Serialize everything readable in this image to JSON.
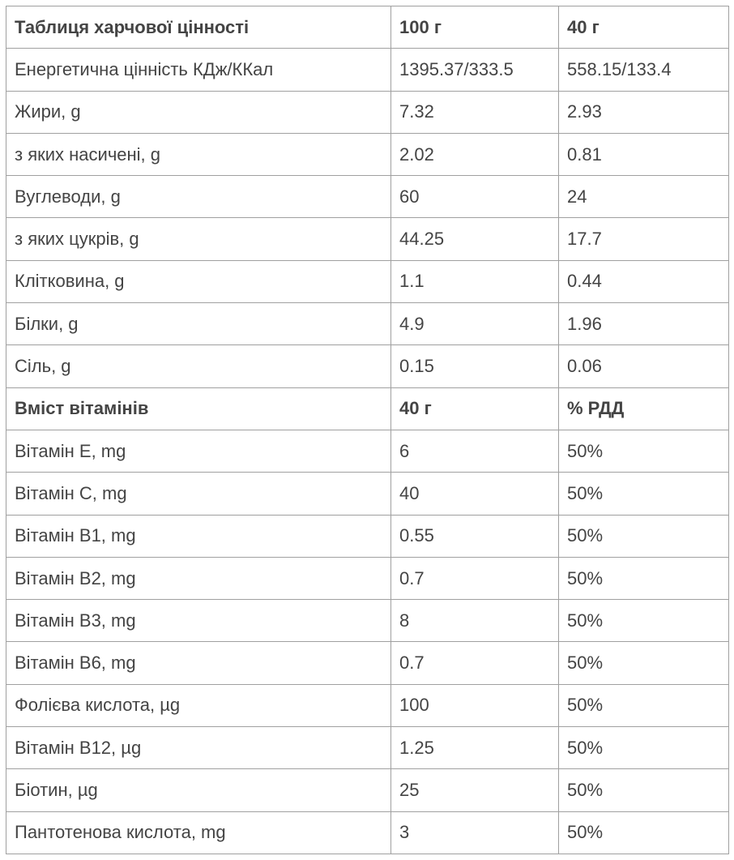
{
  "sections": [
    {
      "header": [
        "Таблиця харчової цінності",
        "100 г",
        "40 г"
      ],
      "rows": [
        [
          "Енергетична цінність КДж/ККал",
          "1395.37/333.5",
          "558.15/133.4"
        ],
        [
          "Жири, g",
          "7.32",
          "2.93"
        ],
        [
          "з яких насичені, g",
          "2.02",
          "0.81"
        ],
        [
          "Вуглеводи, g",
          "60",
          "24"
        ],
        [
          "з яких цукрів, g",
          "44.25",
          "17.7"
        ],
        [
          "Клітковина, g",
          "1.1",
          "0.44"
        ],
        [
          "Білки, g",
          "4.9",
          "1.96"
        ],
        [
          "Сіль, g",
          "0.15",
          "0.06"
        ]
      ]
    },
    {
      "header": [
        "Вміст вітамінів",
        "40 г",
        "% РДД"
      ],
      "rows": [
        [
          "Вітамін E, mg",
          "6",
          "50%"
        ],
        [
          "Вітамін C, mg",
          "40",
          "50%"
        ],
        [
          "Вітамін B1, mg",
          "0.55",
          "50%"
        ],
        [
          "Вітамін B2, mg",
          "0.7",
          "50%"
        ],
        [
          "Вітамін B3, mg",
          "8",
          "50%"
        ],
        [
          "Вітамін B6, mg",
          "0.7",
          "50%"
        ],
        [
          "Фолієва кислота, µg",
          "100",
          "50%"
        ],
        [
          "Вітамін B12, µg",
          "1.25",
          "50%"
        ],
        [
          "Біотин, µg",
          "25",
          "50%"
        ],
        [
          "Пантотенова кислота, mg",
          "3",
          "50%"
        ]
      ]
    }
  ]
}
